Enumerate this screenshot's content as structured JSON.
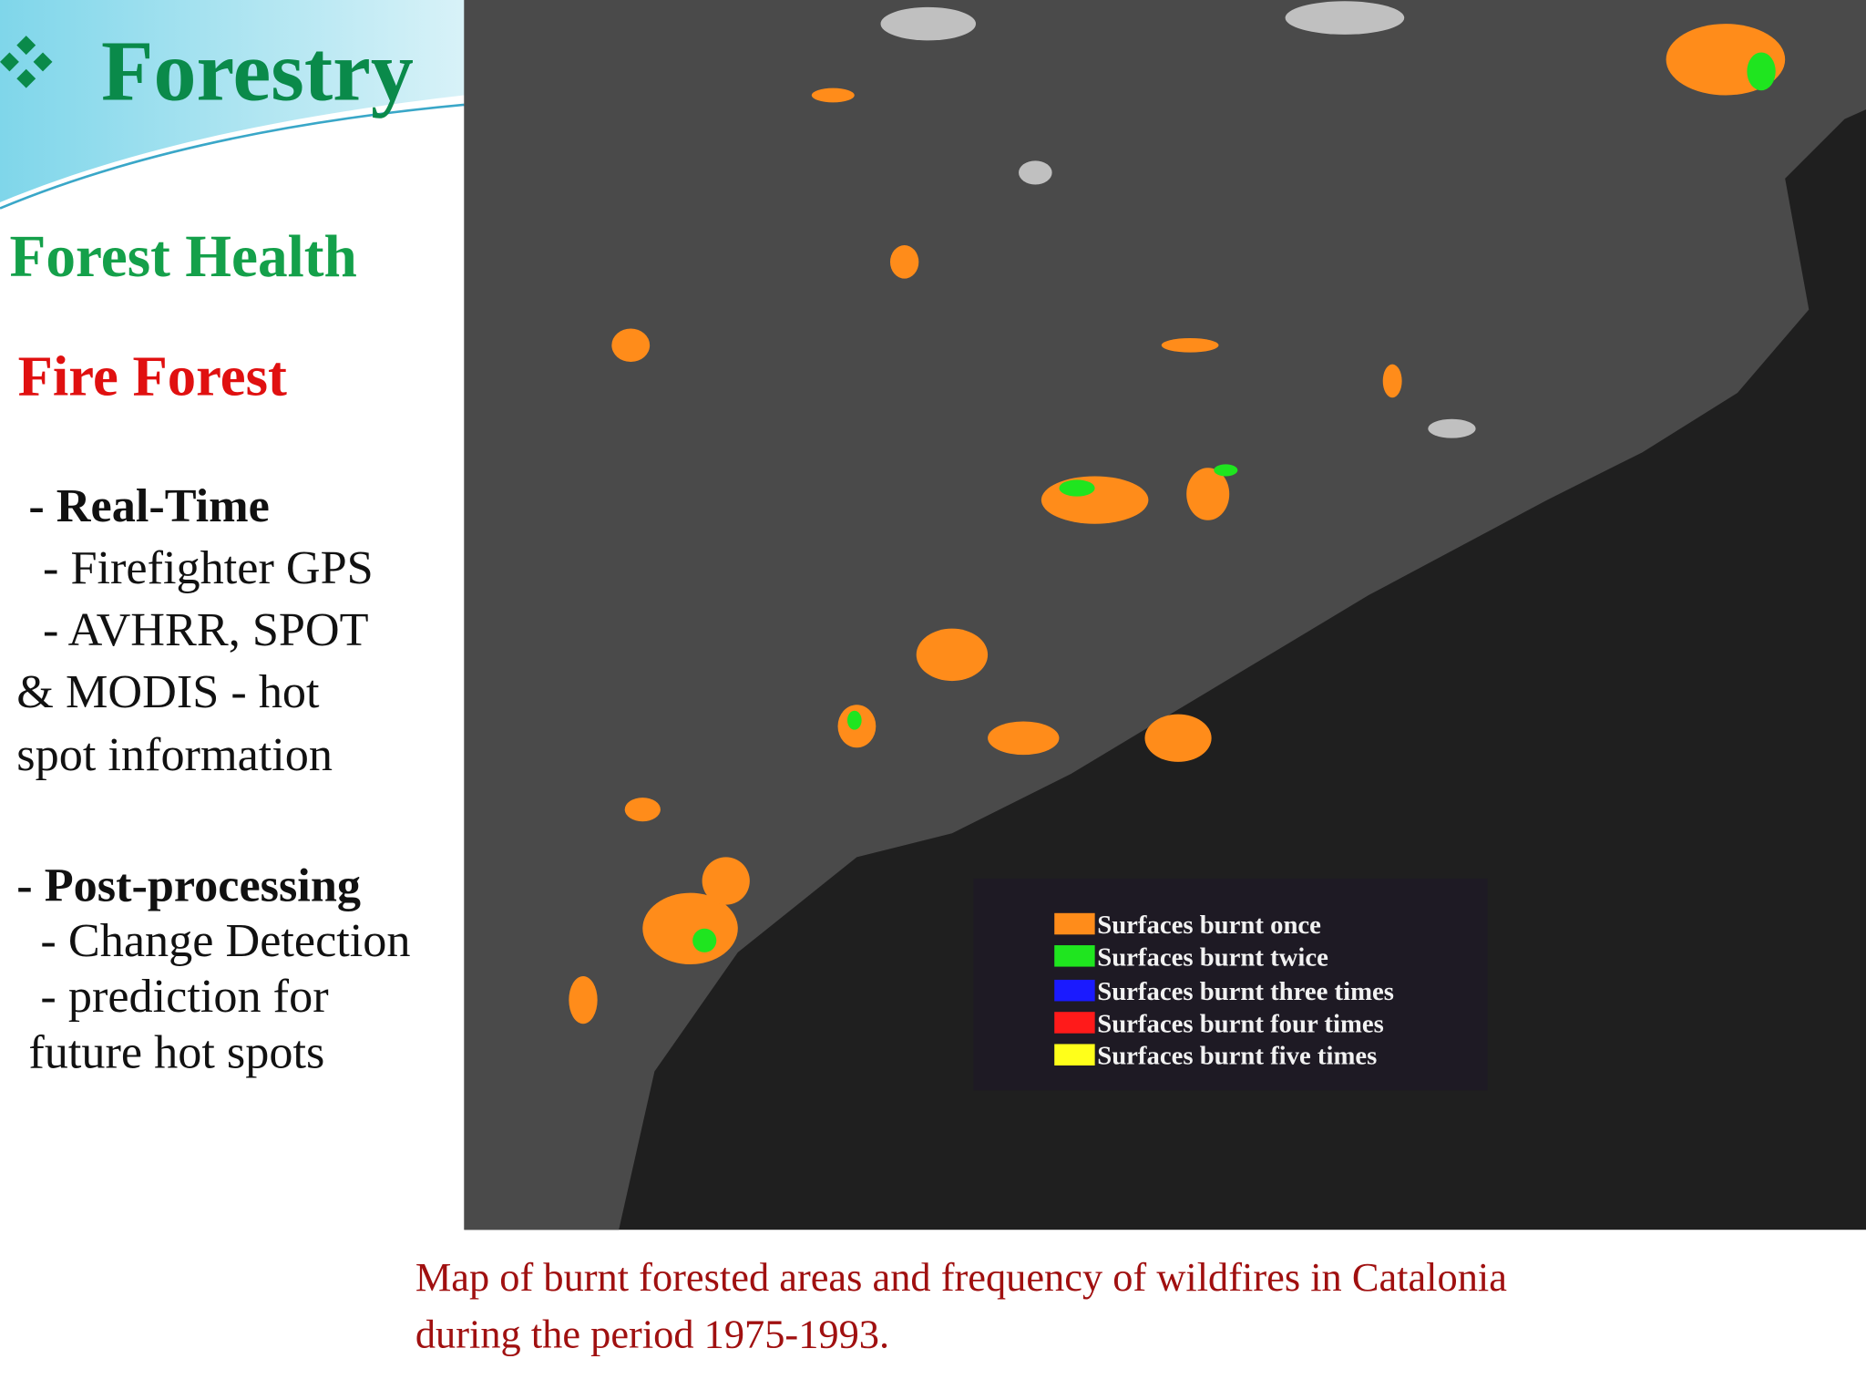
{
  "header": {
    "title": "Forestry"
  },
  "section": "Forest Health",
  "subsection": "Fire Forest",
  "real_time": {
    "heading": "- Real-Time",
    "lines": [
      "- Firefighter GPS",
      "- AVHRR, SPOT",
      "& MODIS - hot",
      "spot information"
    ]
  },
  "post_processing": {
    "heading": "- Post-processing",
    "lines": [
      "- Change Detection",
      "- prediction for",
      "future hot spots"
    ]
  },
  "map": {
    "legend": [
      {
        "label": "Surfaces burnt once",
        "color": "#ff8c1a"
      },
      {
        "label": "Surfaces burnt twice",
        "color": "#1fe51f"
      },
      {
        "label": "Surfaces burnt three times",
        "color": "#1a1aff"
      },
      {
        "label": "Surfaces burnt four times",
        "color": "#ff1a1a"
      },
      {
        "label": "Surfaces burnt five times",
        "color": "#ffff1a"
      }
    ]
  },
  "caption": [
    "Map of burnt forested areas and frequency of wildfires in Catalonia",
    "during the period 1975-1993."
  ]
}
